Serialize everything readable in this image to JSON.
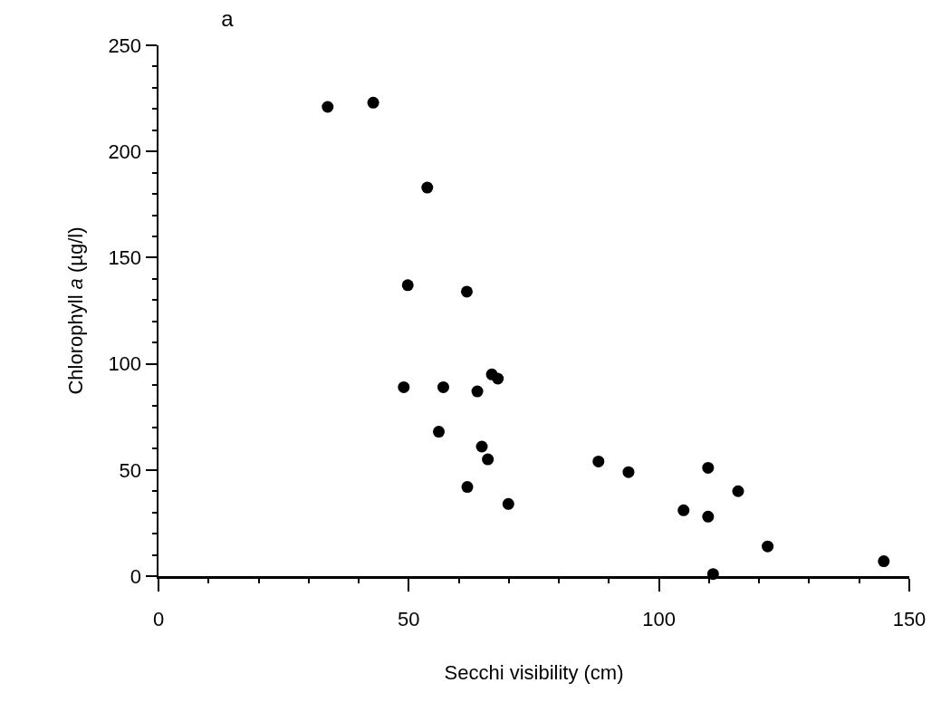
{
  "chart_data": {
    "type": "scatter",
    "title": "a",
    "xlabel": "Secchi visibility (cm)",
    "ylabel": "Chlorophyll a (µg/l)",
    "xlim": [
      0,
      150
    ],
    "xticks": [
      0,
      50,
      100,
      150
    ],
    "ylim": [
      0,
      250
    ],
    "yticks": [
      0,
      50,
      100,
      150,
      200,
      250
    ],
    "grid": false,
    "legend": false,
    "marker": "circle",
    "series": [
      {
        "color": "#000000",
        "x": [
          33.8,
          42.9,
          53.7,
          49.8,
          61.6,
          49,
          56.9,
          63.7,
          66.6,
          67.8,
          56,
          64.6,
          65.8,
          61.7,
          69.9,
          87.9,
          93.9,
          109.8,
          115.8,
          104.9,
          109.8,
          121.7,
          144.9,
          110.8
        ],
        "values": [
          221,
          223,
          183,
          137,
          134,
          89,
          89,
          87,
          95,
          93,
          68,
          61,
          55,
          42,
          34,
          54,
          49,
          51,
          40,
          31,
          28,
          14,
          7,
          1
        ]
      }
    ]
  }
}
